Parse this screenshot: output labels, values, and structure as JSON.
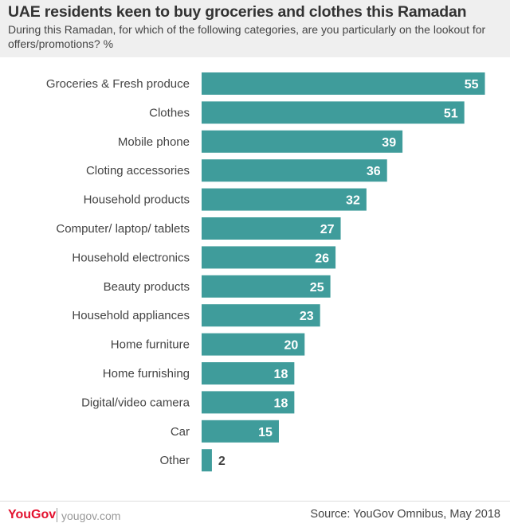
{
  "title": "UAE residents keen to buy groceries and clothes this Ramadan",
  "subtitle": "During this Ramadan, for which of the following categories, are you particularly on the lookout for offers/promotions? %",
  "footer": {
    "logo": "YouGov",
    "site": "yougov.com",
    "source": "Source: YouGov Omnibus, May 2018"
  },
  "colors": {
    "bar": "#3f9c9b",
    "label_inside": "#ffffff",
    "label_outside": "#444444",
    "logo": "#e3122f"
  },
  "chart_data": {
    "type": "bar",
    "orientation": "horizontal",
    "categories": [
      "Groceries & Fresh produce",
      "Clothes",
      "Mobile phone",
      "Cloting accessories",
      "Household products",
      "Computer/ laptop/ tablets",
      "Household electronics",
      "Beauty products",
      "Household appliances",
      "Home furniture",
      "Home furnishing",
      "Digital/video camera",
      "Car",
      "Other"
    ],
    "values": [
      55,
      51,
      39,
      36,
      32,
      27,
      26,
      25,
      23,
      20,
      18,
      18,
      15,
      2
    ],
    "unit": "%",
    "xlim": [
      0,
      56
    ],
    "grid": false,
    "legend": "none"
  }
}
